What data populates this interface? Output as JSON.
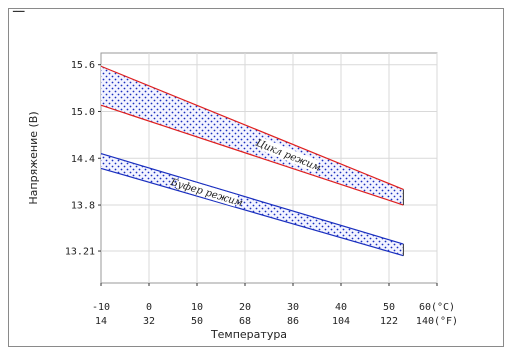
{
  "chart_data": {
    "type": "area",
    "title": "",
    "xlabel": "Температура",
    "ylabel": "Напряжение (В)",
    "x_ticks_c": [
      "-10",
      "0",
      "10",
      "20",
      "30",
      "40",
      "50",
      "60(°C)"
    ],
    "x_ticks_f": [
      "14",
      "32",
      "50",
      "68",
      "86",
      "104",
      "122",
      "140(°F)"
    ],
    "y_ticks": [
      "15.6",
      "15.0",
      "14.4",
      "13.8",
      "13.21"
    ],
    "xlim": [
      -10,
      60
    ],
    "ylim": [
      12.8,
      15.75
    ],
    "grid": true,
    "series": [
      {
        "name": "Цикл режим",
        "x": [
          -10,
          53
        ],
        "upper": [
          15.58,
          14.0
        ],
        "lower": [
          15.08,
          13.8
        ],
        "band_color": "#1a2fbf",
        "upper_line_color": "#e0201e",
        "lower_line_color": "#e0201e"
      },
      {
        "name": "Буфер режим",
        "x": [
          -10,
          53
        ],
        "upper": [
          14.46,
          13.3
        ],
        "lower": [
          14.27,
          13.15
        ],
        "band_color": "#1a2fbf",
        "upper_line_color": "#1a2fbf",
        "lower_line_color": "#1a2fbf"
      }
    ]
  }
}
